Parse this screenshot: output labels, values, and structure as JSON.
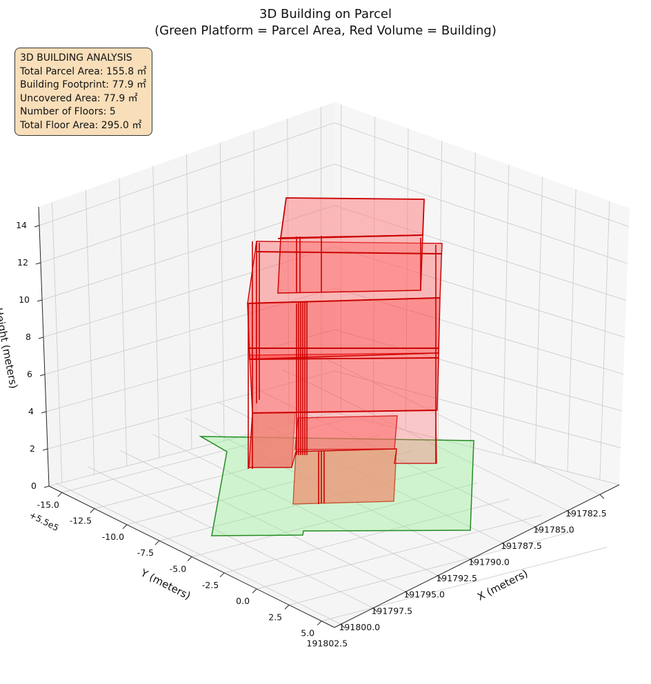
{
  "chart_data": {
    "type": "3d-polygon",
    "title": [
      "3D Building on Parcel",
      "(Green Platform = Parcel Area, Red Volume = Building)"
    ],
    "xlabel": "X (meters)",
    "ylabel": "Y (meters)",
    "zlabel": "Height (meters)",
    "y_offset_label": "+5.5e5",
    "x_ticks": [
      "191782.5",
      "191785.0",
      "191787.5",
      "191790.0",
      "191792.5",
      "191795.0",
      "191797.5",
      "191800.0",
      "191802.5"
    ],
    "y_ticks": [
      "-15.0",
      "-12.5",
      "-10.0",
      "-7.5",
      "-5.0",
      "-2.5",
      "0.0",
      "2.5",
      "5.0"
    ],
    "z_ticks": [
      "0",
      "2",
      "4",
      "6",
      "8",
      "10",
      "12",
      "14"
    ],
    "xlim": [
      191781,
      191803
    ],
    "ylim": [
      -16,
      6
    ],
    "zlim": [
      0,
      15
    ],
    "grid": true,
    "parcel_color": "#90ee90",
    "parcel_edge_color": "#228b22",
    "building_color": "#ff0000",
    "floors": 5
  },
  "info_box": {
    "lines": [
      "3D BUILDING ANALYSIS",
      "Total Parcel Area: 155.8 ㎡",
      "Building Footprint: 77.9 ㎡",
      "Uncovered Area: 77.9 ㎡",
      "Number of Floors: 5",
      "Total Floor Area: 295.0 ㎡"
    ]
  }
}
